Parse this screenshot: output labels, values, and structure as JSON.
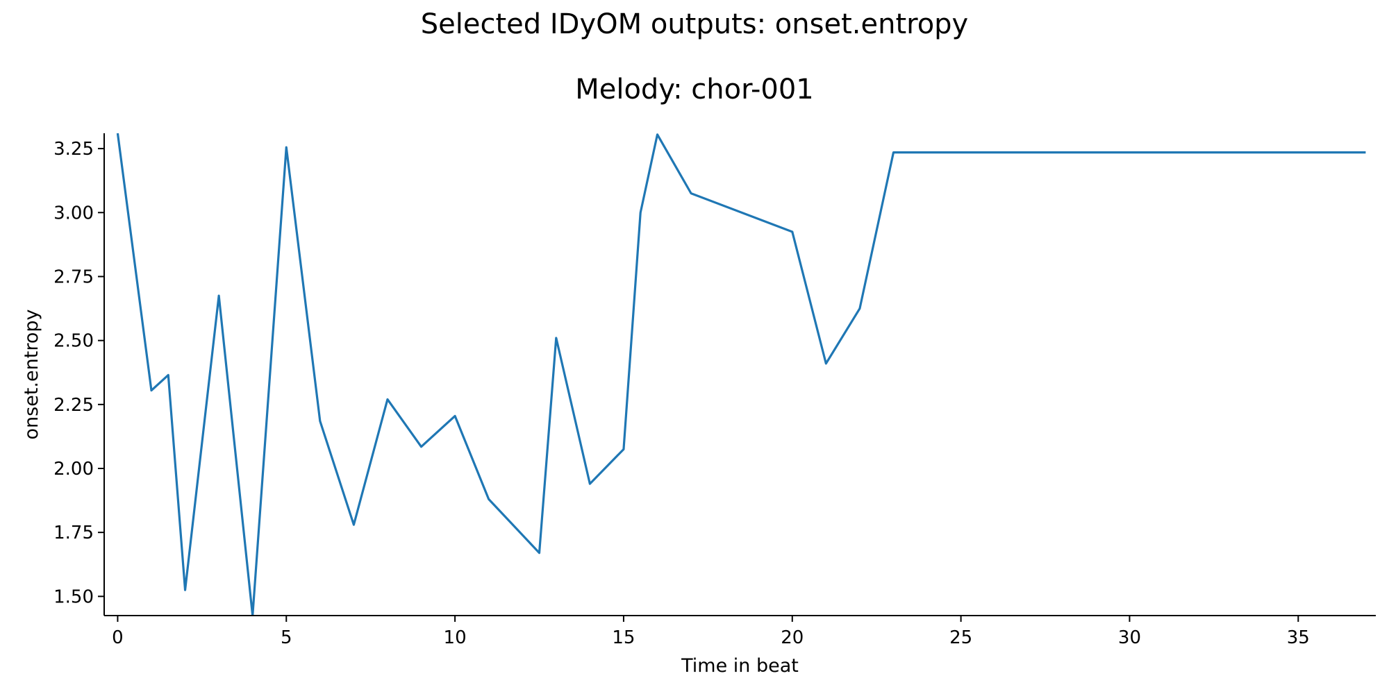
{
  "chart_data": {
    "type": "line",
    "title": "Selected IDyOM outputs: onset.entropy",
    "subtitle": "Melody: chor-001",
    "xlabel": "Time in beat",
    "ylabel": "onset.entropy",
    "xlim": [
      -0.4,
      37.3
    ],
    "ylim": [
      1.425,
      3.31
    ],
    "xticks": [
      0,
      5,
      10,
      15,
      20,
      25,
      30,
      35
    ],
    "yticks": [
      1.5,
      1.75,
      2.0,
      2.25,
      2.5,
      2.75,
      3.0,
      3.25
    ],
    "ytick_labels": [
      "1.50",
      "1.75",
      "2.00",
      "2.25",
      "2.50",
      "2.75",
      "3.00",
      "3.25"
    ],
    "grid": false,
    "series": [
      {
        "color": "#1f77b4",
        "x": [
          0,
          1,
          1.5,
          2,
          3,
          4,
          5,
          6,
          7,
          8,
          9,
          10,
          11,
          12.5,
          13,
          14,
          15,
          15.5,
          16,
          17,
          20,
          21,
          22,
          23,
          37
        ],
        "y": [
          3.31,
          2.305,
          2.365,
          1.525,
          2.675,
          1.425,
          3.255,
          2.185,
          1.78,
          2.27,
          2.085,
          2.205,
          1.88,
          1.67,
          2.51,
          1.94,
          2.075,
          3.0,
          3.305,
          3.075,
          2.925,
          2.41,
          2.625,
          3.235,
          3.235
        ]
      }
    ]
  }
}
